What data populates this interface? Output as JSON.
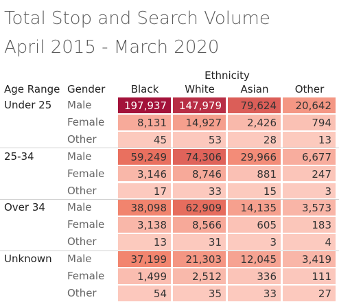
{
  "title": "Total Stop and Search Volume",
  "subtitle": "April 2015 - March 2020",
  "chart_data": {
    "type": "heatmap",
    "column_group_label": "Ethnicity",
    "row_header_labels": [
      "Age Range",
      "Gender"
    ],
    "columns": [
      "Black",
      "White",
      "Asian",
      "Other"
    ],
    "rows": [
      {
        "age": "Under 25",
        "gender": "Male",
        "values": [
          197937,
          147979,
          79624,
          20642
        ]
      },
      {
        "age": "Under 25",
        "gender": "Female",
        "values": [
          8131,
          14927,
          2426,
          794
        ]
      },
      {
        "age": "Under 25",
        "gender": "Other",
        "values": [
          45,
          53,
          28,
          13
        ]
      },
      {
        "age": "25-34",
        "gender": "Male",
        "values": [
          59249,
          74306,
          29966,
          6677
        ]
      },
      {
        "age": "25-34",
        "gender": "Female",
        "values": [
          3146,
          8746,
          881,
          247
        ]
      },
      {
        "age": "25-34",
        "gender": "Other",
        "values": [
          17,
          33,
          15,
          3
        ]
      },
      {
        "age": "Over 34",
        "gender": "Male",
        "values": [
          38098,
          62909,
          14135,
          3573
        ]
      },
      {
        "age": "Over 34",
        "gender": "Female",
        "values": [
          3138,
          8566,
          605,
          183
        ]
      },
      {
        "age": "Over 34",
        "gender": "Other",
        "values": [
          13,
          31,
          3,
          4
        ]
      },
      {
        "age": "Unknown",
        "gender": "Male",
        "values": [
          37199,
          21303,
          12045,
          3419
        ]
      },
      {
        "age": "Unknown",
        "gender": "Female",
        "values": [
          1499,
          2512,
          336,
          111
        ]
      },
      {
        "age": "Unknown",
        "gender": "Other",
        "values": [
          54,
          35,
          33,
          27
        ]
      }
    ],
    "color_low": "#fccbc0",
    "color_mid": "#f07a63",
    "color_high": "#a3123a",
    "value_range": [
      3,
      197937
    ]
  }
}
